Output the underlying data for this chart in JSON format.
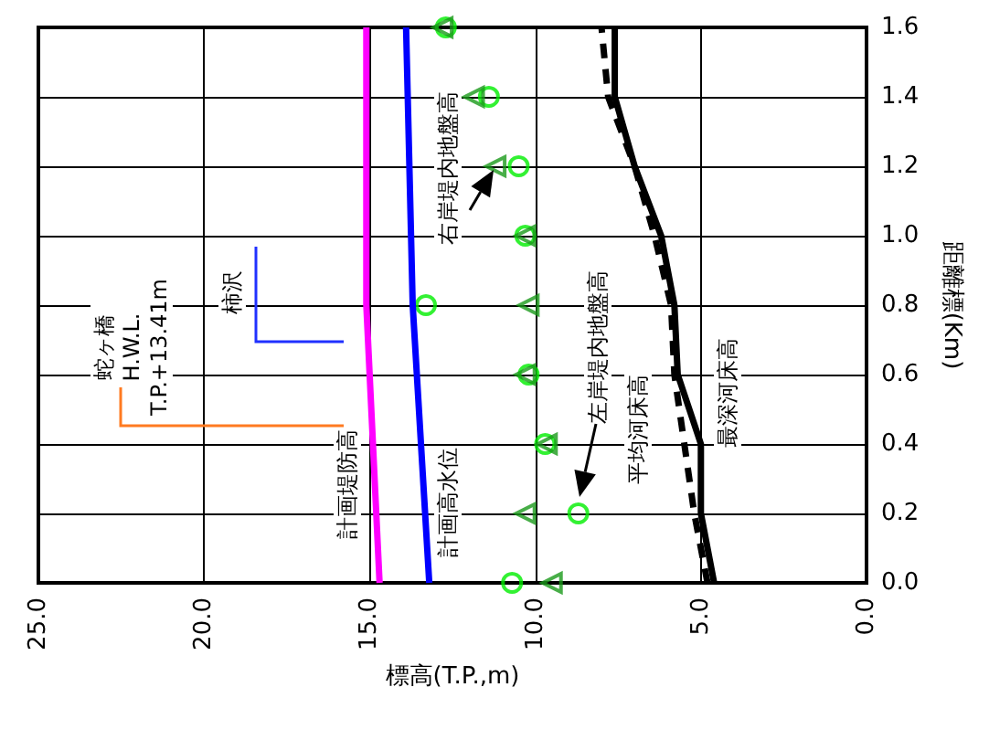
{
  "chart_data": {
    "type": "line",
    "orientation": "horizontal",
    "xlabel": "標高(T.P.,m)",
    "ylabel": "距離標(Km)",
    "xlim": [
      25,
      0
    ],
    "xticks": [
      {
        "value": 25,
        "label": "25.0"
      },
      {
        "value": 20,
        "label": "20.0"
      },
      {
        "value": 15,
        "label": "15.0"
      },
      {
        "value": 10,
        "label": "10.0"
      },
      {
        "value": 5,
        "label": "5.0"
      },
      {
        "value": 0,
        "label": "0.0"
      }
    ],
    "ylim": [
      0,
      1.6
    ],
    "yticks": [
      {
        "value": 0,
        "label": "0.0"
      },
      {
        "value": 0.2,
        "label": "0.2"
      },
      {
        "value": 0.4,
        "label": "0.4"
      },
      {
        "value": 0.6,
        "label": "0.6"
      },
      {
        "value": 0.8,
        "label": "0.8"
      },
      {
        "value": 1.0,
        "label": "1.0"
      },
      {
        "value": 1.2,
        "label": "1.2"
      },
      {
        "value": 1.4,
        "label": "1.4"
      },
      {
        "value": 1.6,
        "label": "1.6"
      }
    ],
    "grid": true,
    "series": [
      {
        "color": "#ff00ff",
        "x": [
          0,
          0.6,
          0.8,
          1.6
        ],
        "values": [
          14.7,
          15.0,
          15.1,
          15.1
        ]
      },
      {
        "color": "#0000ff",
        "x": [
          0,
          0.8,
          1.6
        ],
        "values": [
          13.2,
          13.7,
          13.9
        ]
      },
      {
        "color": "#000000",
        "line_style": "dashed",
        "x": [
          0,
          0.2,
          0.4,
          0.6,
          0.8,
          1.0,
          1.2,
          1.4,
          1.6
        ],
        "values": [
          4.8,
          5.2,
          5.5,
          5.8,
          5.9,
          6.4,
          7.0,
          7.8,
          8.0
        ]
      },
      {
        "color": "#000000",
        "x": [
          0,
          0.2,
          0.4,
          0.6,
          0.8,
          1.0,
          1.2,
          1.4,
          1.6
        ],
        "values": [
          4.6,
          5.0,
          5.0,
          5.7,
          5.8,
          6.2,
          7.0,
          7.6,
          7.6
        ]
      },
      {
        "type": "scatter",
        "marker": "circle",
        "color": "#00ee00",
        "x": [
          0,
          0.2,
          0.4,
          0.6,
          0.8,
          1.0,
          1.2,
          1.4,
          1.6
        ],
        "values": [
          10.7,
          8.7,
          9.7,
          10.2,
          13.3,
          10.3,
          10.5,
          11.4,
          12.7
        ]
      },
      {
        "type": "scatter",
        "marker": "triangle",
        "color": "#1a9a1a",
        "x": [
          0,
          0.2,
          0.4,
          0.6,
          0.8,
          1.0,
          1.2,
          1.4,
          1.6
        ],
        "values": [
          9.5,
          10.3,
          9.65,
          10.3,
          10.2,
          10.3,
          11.2,
          11.85,
          12.8
        ]
      }
    ],
    "annotations": [
      "計画堤防高",
      "計画高水位",
      "左岸堤内地盤高",
      "右岸堤内地盤高",
      "平均河床高",
      "最深河床高",
      "柿沢",
      "蛇ヶ橋\nH.W.L.\nT.P.+13.41m"
    ]
  }
}
